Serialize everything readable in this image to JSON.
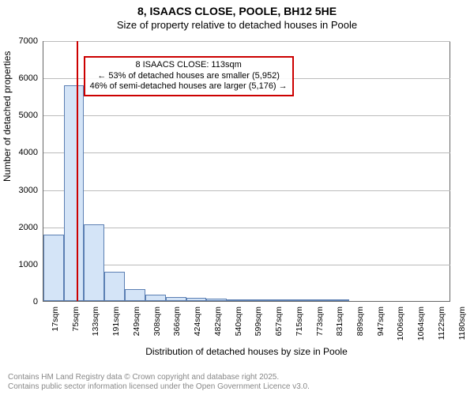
{
  "title": {
    "line1": "8, ISAACS CLOSE, POOLE, BH12 5HE",
    "line2": "Size of property relative to detached houses in Poole"
  },
  "chart": {
    "type": "histogram",
    "ylabel": "Number of detached properties",
    "xlabel": "Distribution of detached houses by size in Poole",
    "ylim": [
      0,
      7000
    ],
    "ytick_step": 1000,
    "yticks": [
      0,
      1000,
      2000,
      3000,
      4000,
      5000,
      6000,
      7000
    ],
    "xticks": [
      "17sqm",
      "75sqm",
      "133sqm",
      "191sqm",
      "249sqm",
      "308sqm",
      "366sqm",
      "424sqm",
      "482sqm",
      "540sqm",
      "599sqm",
      "657sqm",
      "715sqm",
      "773sqm",
      "831sqm",
      "889sqm",
      "947sqm",
      "1006sqm",
      "1064sqm",
      "1122sqm",
      "1180sqm"
    ],
    "bar_fill": "#d4e4f7",
    "bar_border": "#5b7fb3",
    "grid_color": "#bbbbbb",
    "axis_color": "#666666",
    "background_color": "#ffffff",
    "bars": [
      {
        "x": 17,
        "v": 1780
      },
      {
        "x": 75,
        "v": 5790
      },
      {
        "x": 133,
        "v": 2050
      },
      {
        "x": 191,
        "v": 780
      },
      {
        "x": 249,
        "v": 320
      },
      {
        "x": 308,
        "v": 170
      },
      {
        "x": 366,
        "v": 110
      },
      {
        "x": 424,
        "v": 80
      },
      {
        "x": 482,
        "v": 60
      },
      {
        "x": 540,
        "v": 50
      },
      {
        "x": 599,
        "v": 40
      },
      {
        "x": 657,
        "v": 30
      },
      {
        "x": 715,
        "v": 20
      },
      {
        "x": 773,
        "v": 15
      },
      {
        "x": 831,
        "v": 10
      }
    ],
    "bin_width": 58,
    "xlim": [
      17,
      1180
    ],
    "marker_line": {
      "x": 113,
      "color": "#cc0000",
      "width": 2
    },
    "annotation": {
      "lines": [
        "8 ISAACS CLOSE: 113sqm",
        "← 53% of detached houses are smaller (5,952)",
        "46% of semi-detached houses are larger (5,176) →"
      ],
      "border_color": "#cc0000",
      "font_size": 11
    }
  },
  "footer": {
    "line1": "Contains HM Land Registry data © Crown copyright and database right 2025.",
    "line2": "Contains public sector information licensed under the Open Government Licence v3.0."
  }
}
